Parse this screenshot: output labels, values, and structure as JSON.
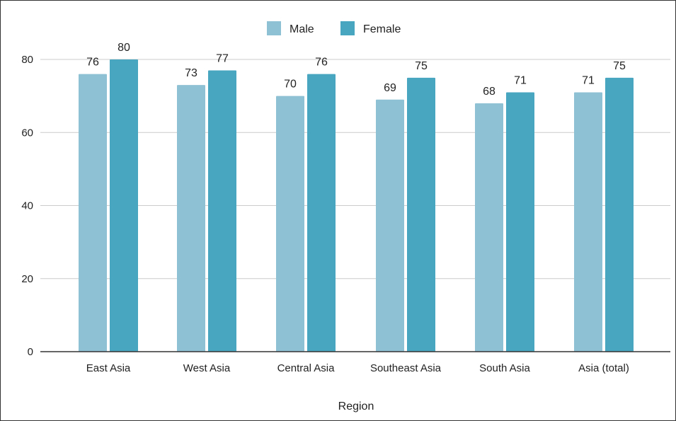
{
  "chart_data": {
    "type": "bar",
    "categories": [
      "East Asia",
      "West Asia",
      "Central Asia",
      "Southeast Asia",
      "South Asia",
      "Asia (total)"
    ],
    "series": [
      {
        "name": "Male",
        "values": [
          76,
          73,
          70,
          69,
          68,
          71
        ],
        "color": "#8fc1d4"
      },
      {
        "name": "Female",
        "values": [
          80,
          77,
          76,
          75,
          71,
          75
        ],
        "color": "#49a6c1"
      }
    ],
    "title": "",
    "xlabel": "Region",
    "ylabel": "",
    "ylim": [
      0,
      80
    ],
    "yticks": [
      0,
      20,
      40,
      60,
      80
    ],
    "ytick_labels": [
      "0",
      "20",
      "40",
      "60",
      "80"
    ],
    "grid": true,
    "legend": "top-center",
    "data_labels": true
  }
}
